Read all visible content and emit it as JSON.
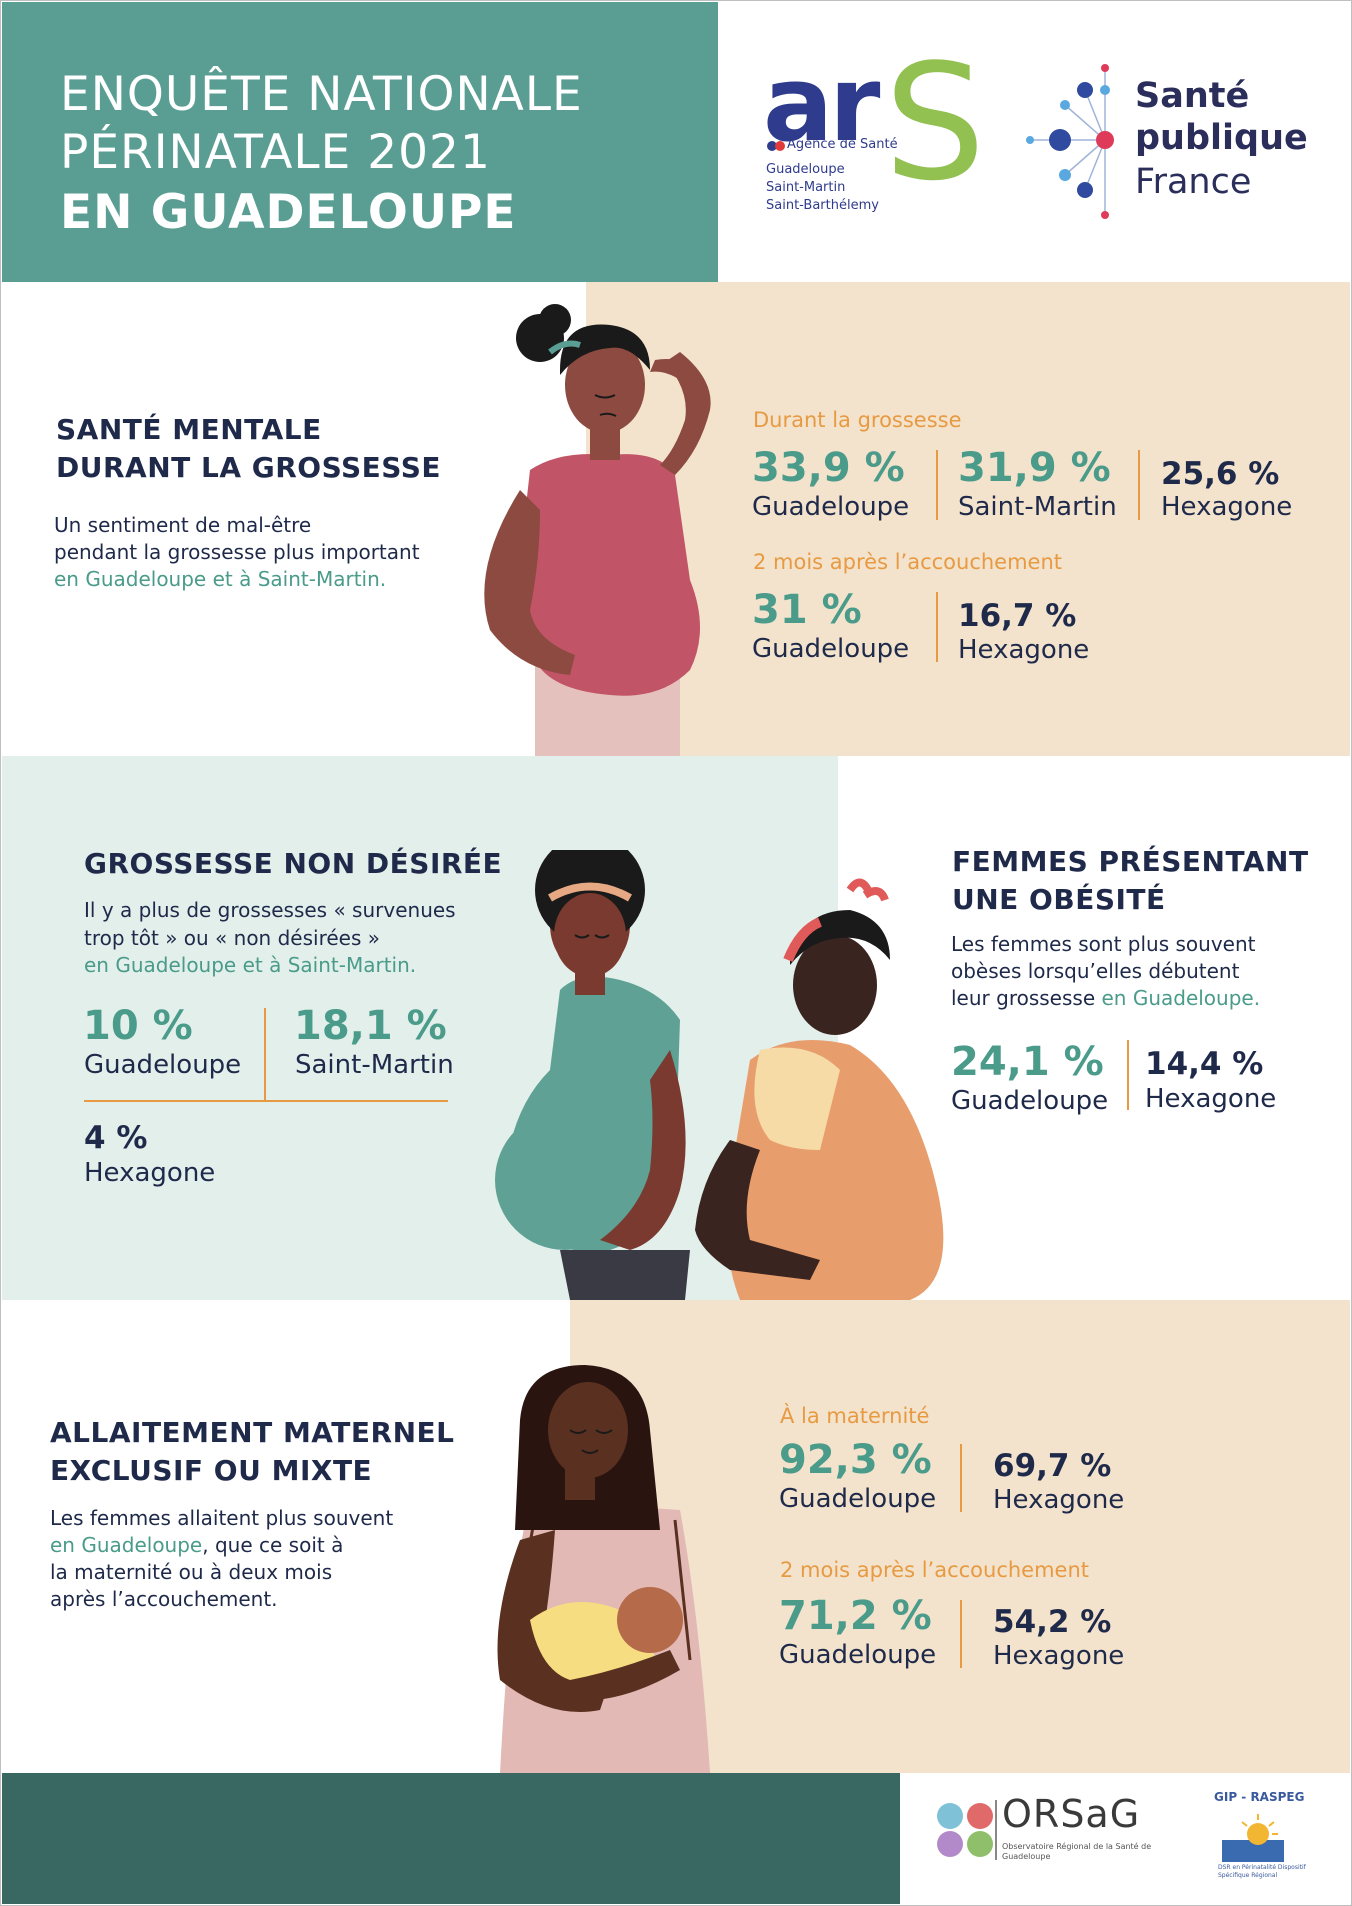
{
  "header": {
    "line1": "ENQUÊTE NATIONALE",
    "line2": "PÉRINATALE 2021",
    "line3": "EN GUADELOUPE"
  },
  "logos": {
    "ars": {
      "wordmark": "ar",
      "s_letter": "S",
      "agence": "Agence de Santé",
      "regions": [
        "Guadeloupe",
        "Saint-Martin",
        "Saint-Barthélemy"
      ]
    },
    "spf": {
      "line1": "Santé",
      "line2": "publique",
      "line3": "France"
    },
    "orsag": {
      "name": "ORSaG",
      "subtitle": "Observatoire Régional de la Santé de Guadeloupe"
    },
    "gip": {
      "name": "GIP - RASPEG",
      "subtitle": "DSR en Périnatalité Dispositif Spécifique Régional"
    }
  },
  "mental_health": {
    "title_line1": "SANTÉ MENTALE",
    "title_line2": "DURANT LA GROSSESSE",
    "desc_line1": "Un sentiment de mal-être",
    "desc_line2": "pendant la grossesse plus important",
    "desc_line3": "en Guadeloupe et à Saint-Martin.",
    "sub1": "Durant la grossesse",
    "stats1": [
      {
        "value": "33,9 %",
        "label": "Guadeloupe"
      },
      {
        "value": "31,9 %",
        "label": "Saint-Martin"
      },
      {
        "value": "25,6 %",
        "label": "Hexagone"
      }
    ],
    "sub2": "2 mois après l’accouchement",
    "stats2": [
      {
        "value": "31 %",
        "label": "Guadeloupe"
      },
      {
        "value": "16,7 %",
        "label": "Hexagone"
      }
    ]
  },
  "unwanted": {
    "title": "GROSSESSE NON DÉSIRÉE",
    "desc_line1": "Il y a plus de grossesses « survenues",
    "desc_line2": "trop tôt » ou « non désirées »",
    "desc_line3": "en Guadeloupe et à Saint-Martin.",
    "stats": [
      {
        "value": "10 %",
        "label": "Guadeloupe"
      },
      {
        "value": "18,1 %",
        "label": "Saint-Martin"
      },
      {
        "value": "4 %",
        "label": "Hexagone"
      }
    ]
  },
  "obesity": {
    "title_line1": "FEMMES PRÉSENTANT",
    "title_line2": "UNE OBÉSITÉ",
    "desc_line1": "Les femmes sont plus souvent",
    "desc_line2": "obèses lorsqu’elles débutent",
    "desc_line3": "leur grossesse ",
    "desc_line3_accent": "en Guadeloupe.",
    "stats": [
      {
        "value": "24,1 %",
        "label": "Guadeloupe"
      },
      {
        "value": "14,4 %",
        "label": "Hexagone"
      }
    ]
  },
  "breastfeeding": {
    "title_line1": "ALLAITEMENT MATERNEL",
    "title_line2": "EXCLUSIF OU MIXTE",
    "desc_line1": "Les femmes allaitent plus souvent",
    "desc_line2_accent": "en Guadeloupe",
    "desc_line2": ", que ce soit à",
    "desc_line3": "la maternité ou à deux mois",
    "desc_line4": "après l’accouchement.",
    "sub1": "À la maternité",
    "stats1": [
      {
        "value": "92,3 %",
        "label": "Guadeloupe"
      },
      {
        "value": "69,7 %",
        "label": "Hexagone"
      }
    ],
    "sub2": "2 mois après l’accouchement",
    "stats2": [
      {
        "value": "71,2 %",
        "label": "Guadeloupe"
      },
      {
        "value": "54,2 %",
        "label": "Hexagone"
      }
    ]
  },
  "colors": {
    "teal_header": "#5a9e93",
    "teal_accent": "#4a9b8a",
    "navy": "#1f2a4a",
    "orange": "#e79a42",
    "beige": "#f3e3cc",
    "mint": "#e2efeb",
    "footer": "#386861"
  }
}
